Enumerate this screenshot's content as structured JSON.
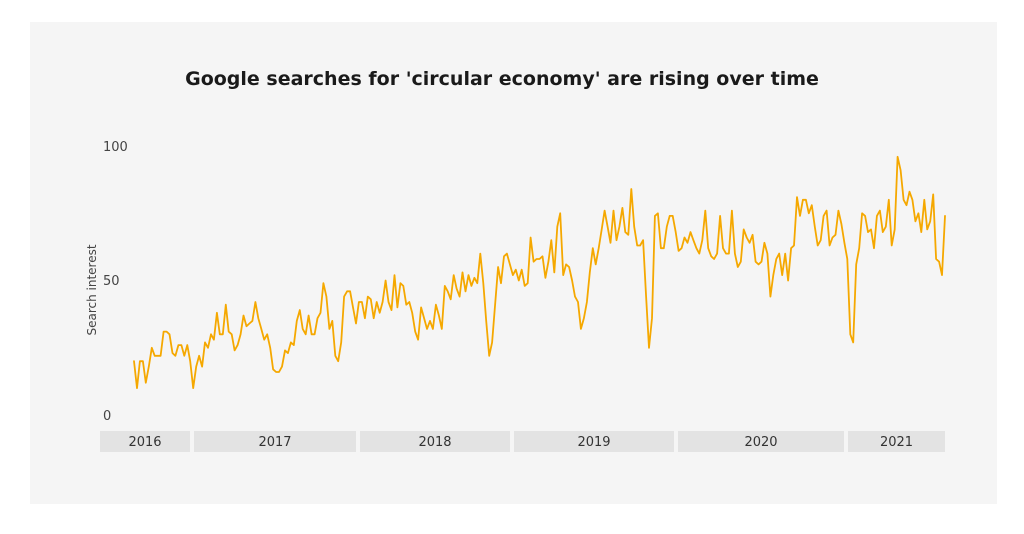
{
  "chart_data": {
    "type": "line",
    "title": "Google searches for 'circular economy' are rising over time",
    "ylabel": "Search interest",
    "xlabel": "",
    "ylim": [
      0,
      100
    ],
    "yticks": [
      "100",
      "50",
      "0"
    ],
    "years": [
      "2016",
      "2017",
      "2018",
      "2019",
      "2020",
      "2021"
    ],
    "x_range": [
      "2016-03",
      "2021-08"
    ],
    "line_color": "#f5a800",
    "series": [
      {
        "name": "",
        "values": [
          20,
          10,
          20,
          20,
          12,
          18,
          25,
          22,
          22,
          22,
          31,
          31,
          30,
          23,
          22,
          26,
          26,
          22,
          26,
          20,
          10,
          18,
          22,
          18,
          27,
          25,
          30,
          28,
          38,
          30,
          30,
          41,
          31,
          30,
          24,
          26,
          30,
          37,
          33,
          34,
          35,
          42,
          36,
          32,
          28,
          30,
          25,
          17,
          16,
          16,
          18,
          24,
          23,
          27,
          26,
          35,
          39,
          32,
          30,
          37,
          30,
          30,
          36,
          38,
          49,
          44,
          32,
          35,
          22,
          20,
          27,
          44,
          46,
          46,
          40,
          34,
          42,
          42,
          36,
          44,
          43,
          36,
          42,
          38,
          42,
          50,
          42,
          39,
          52,
          40,
          49,
          48,
          41,
          42,
          38,
          31,
          28,
          40,
          36,
          32,
          35,
          32,
          41,
          37,
          32,
          48,
          46,
          43,
          52,
          47,
          44,
          53,
          46,
          52,
          48,
          51,
          49,
          60,
          49,
          35,
          22,
          27,
          41,
          55,
          49,
          59,
          60,
          56,
          52,
          54,
          50,
          54,
          48,
          49,
          66,
          57,
          58,
          58,
          59,
          51,
          57,
          65,
          53,
          70,
          75,
          52,
          56,
          55,
          50,
          44,
          42,
          32,
          36,
          42,
          53,
          62,
          56,
          62,
          69,
          76,
          70,
          64,
          76,
          65,
          70,
          77,
          68,
          67,
          84,
          70,
          63,
          63,
          65,
          44,
          25,
          36,
          74,
          75,
          62,
          62,
          70,
          74,
          74,
          68,
          61,
          62,
          66,
          64,
          68,
          65,
          62,
          60,
          65,
          76,
          62,
          59,
          58,
          60,
          74,
          62,
          60,
          60,
          76,
          60,
          55,
          57,
          69,
          66,
          64,
          67,
          57,
          56,
          57,
          64,
          60,
          44,
          52,
          58,
          60,
          52,
          60,
          50,
          62,
          63,
          81,
          74,
          80,
          80,
          75,
          78,
          70,
          63,
          65,
          74,
          76,
          63,
          66,
          67,
          76,
          71,
          64,
          58,
          30,
          27,
          56,
          62,
          75,
          74,
          68,
          69,
          62,
          74,
          76,
          68,
          70,
          80,
          63,
          69,
          96,
          91,
          80,
          78,
          83,
          80,
          72,
          75,
          68,
          80,
          69,
          72,
          82,
          58,
          57,
          52,
          74
        ]
      }
    ]
  }
}
